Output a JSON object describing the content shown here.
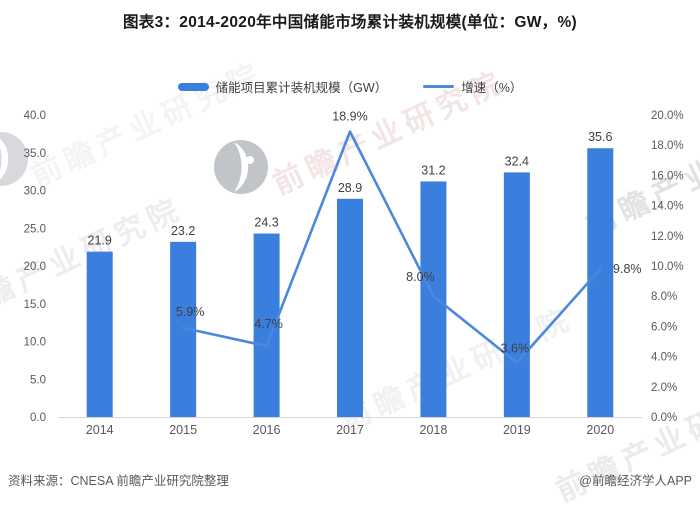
{
  "title": "图表3：2014-2020年中国储能市场累计装机规模(单位：GW，%)",
  "colors": {
    "bar": "#3B7FDE",
    "line": "#4C88DB",
    "data_label": "#404040",
    "axis_label": "#595959",
    "baseline": "#D6D6D6",
    "watermark_gray": "#9AA0A8",
    "watermark_pink": "#D8ABAB"
  },
  "chart_data": {
    "type": "bar+line combo",
    "categories": [
      "2014",
      "2015",
      "2016",
      "2017",
      "2018",
      "2019",
      "2020"
    ],
    "series": [
      {
        "name": "储能项目累计装机规模（GW）",
        "type": "bar",
        "axis": "left",
        "values": [
          21.9,
          23.2,
          24.3,
          28.9,
          31.2,
          32.4,
          35.6
        ],
        "labels": [
          "21.9",
          "23.2",
          "24.3",
          "28.9",
          "31.2",
          "32.4",
          "35.6"
        ]
      },
      {
        "name": "增速（%）",
        "type": "line",
        "axis": "right",
        "values": [
          null,
          5.9,
          4.7,
          18.9,
          8.0,
          3.6,
          9.8
        ],
        "labels": [
          "",
          "5.9%",
          "4.7%",
          "18.9%",
          "8.0%",
          "3.6%",
          "9.8%"
        ]
      }
    ],
    "left_axis": {
      "min": 0,
      "max": 40,
      "step": 5,
      "ticks": [
        "0.0",
        "5.0",
        "10.0",
        "15.0",
        "20.0",
        "25.0",
        "30.0",
        "35.0",
        "40.0"
      ]
    },
    "right_axis": {
      "min": 0,
      "max": 20,
      "step": 2,
      "ticks": [
        "0.0%",
        "2.0%",
        "4.0%",
        "6.0%",
        "8.0%",
        "10.0%",
        "12.0%",
        "14.0%",
        "16.0%",
        "18.0%",
        "20.0%"
      ]
    },
    "grid": false,
    "legend_position": "top"
  },
  "footer": {
    "source": "资料来源：CNESA 前瞻产业研究院整理",
    "credit": "@前瞻经济学人APP"
  },
  "watermark": {
    "text": "前瞻产业研究院"
  }
}
